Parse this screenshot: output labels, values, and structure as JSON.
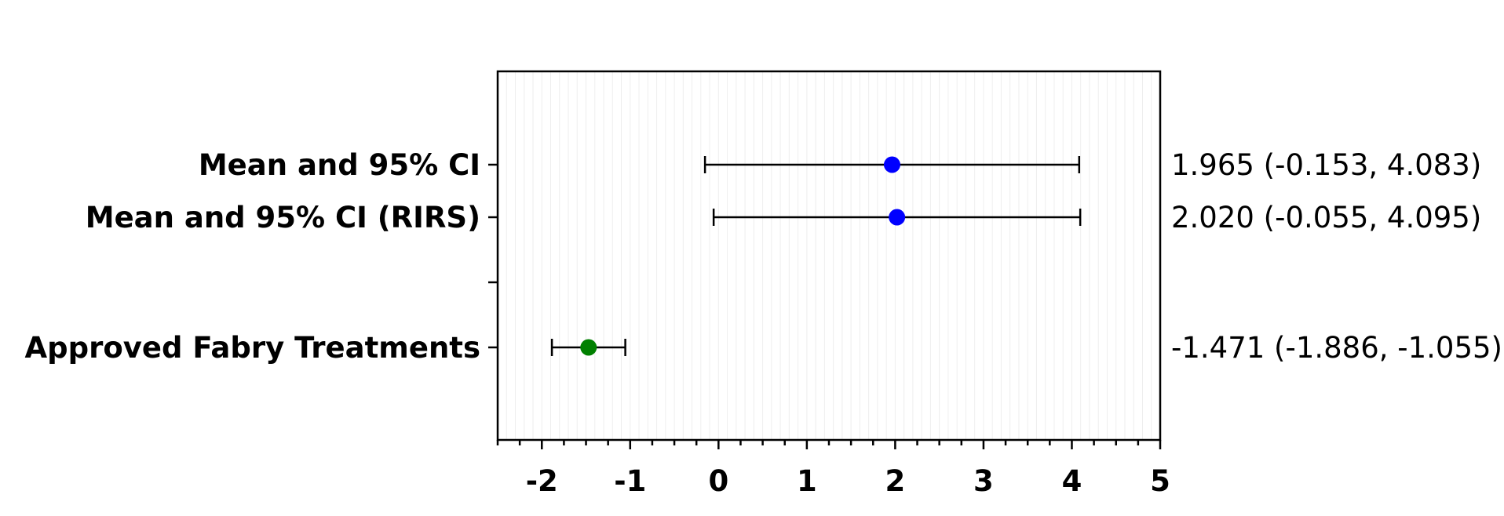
{
  "chart_data": {
    "type": "scatter",
    "subtype": "forest-plot",
    "title": "",
    "xlabel": "",
    "ylabel": "",
    "xlim": [
      -2.5,
      5
    ],
    "x_ticks": [
      -2,
      -1,
      0,
      1,
      2,
      3,
      4,
      5
    ],
    "x_tick_labels": [
      "-2",
      "-1",
      "0",
      "1",
      "2",
      "3",
      "4",
      "5"
    ],
    "grid": true,
    "legend": "none",
    "rows": [
      {
        "label": "Mean and 95% CI",
        "mean": 1.965,
        "lower": -0.153,
        "upper": 4.083,
        "annotation": "1.965 (-0.153, 4.083)",
        "color": "#0000ff"
      },
      {
        "label": "Mean and 95% CI (RIRS)",
        "mean": 2.02,
        "lower": -0.055,
        "upper": 4.095,
        "annotation": "2.020 (-0.055, 4.095)",
        "color": "#0000ff"
      },
      {
        "label": "",
        "mean": null,
        "lower": null,
        "upper": null,
        "annotation": "",
        "color": ""
      },
      {
        "label": "Approved Fabry Treatments",
        "mean": -1.471,
        "lower": -1.886,
        "upper": -1.055,
        "annotation": "-1.471 (-1.886, -1.055)",
        "color": "#008000"
      }
    ]
  }
}
